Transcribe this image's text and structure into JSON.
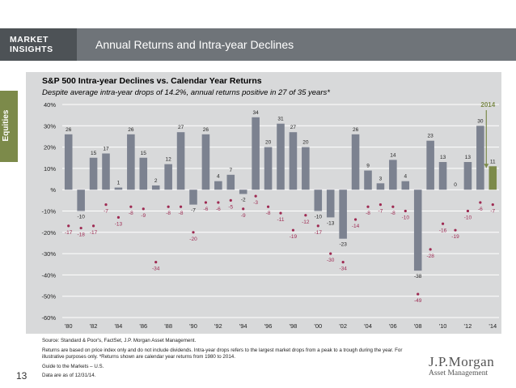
{
  "header": {
    "brand_line1": "MARKET",
    "brand_line2": "INSIGHTS",
    "title": "Annual Returns and Intra-year Declines"
  },
  "side_tab": "Equities",
  "page_number": "13",
  "logo": {
    "line1": "J.P.Morgan",
    "line2": "Asset Management"
  },
  "notes": {
    "source": "Source: Standard & Poor's, FactSet, J.P. Morgan Asset Management.",
    "returns": "Returns are based on price index only and do not include dividends. Intra-year drops refers to the largest market drops from a peak to a trough during the year. For illustrative purposes only. *Returns shown are calendar year returns from 1980 to 2014.",
    "guide": "Guide to the Markets – U.S.",
    "date": "Data are as of 12/31/14."
  },
  "colors": {
    "bar": "#7c8290",
    "highlight_bar": "#7c8a4a",
    "highlight_label": "#7c8a4a",
    "decline": "#9e2a52",
    "panel": "#d8d9da",
    "grid": "#ffffff"
  },
  "chart_data": {
    "type": "bar",
    "title": "S&P 500 Intra-year Declines vs. Calendar Year Returns",
    "subtitle": "Despite average intra-year drops of 14.2%, annual returns positive in 27 of 35 years*",
    "x": [
      1980,
      1981,
      1982,
      1983,
      1984,
      1985,
      1986,
      1987,
      1988,
      1989,
      1990,
      1991,
      1992,
      1993,
      1994,
      1995,
      1996,
      1997,
      1998,
      1999,
      2000,
      2001,
      2002,
      2003,
      2004,
      2005,
      2006,
      2007,
      2008,
      2009,
      2010,
      2011,
      2012,
      2013,
      2014
    ],
    "x_tick_labels": [
      "'80",
      "'82",
      "'84",
      "'86",
      "'88",
      "'90",
      "'92",
      "'94",
      "'96",
      "'98",
      "'00",
      "'02",
      "'04",
      "'06",
      "'08",
      "'10",
      "'12",
      "'14"
    ],
    "y_tick_labels": [
      "40%",
      "30%",
      "20%",
      "10%",
      "%",
      "-10%",
      "-20%",
      "-30%",
      "-40%",
      "-50%",
      "-60%"
    ],
    "ylim": [
      -60,
      40
    ],
    "series": [
      {
        "name": "Calendar year returns",
        "values": [
          26,
          -10,
          15,
          17,
          1,
          26,
          15,
          2,
          12,
          27,
          -7,
          26,
          4,
          7,
          -2,
          34,
          20,
          31,
          27,
          20,
          -10,
          -13,
          -23,
          26,
          9,
          3,
          14,
          4,
          -38,
          23,
          13,
          0,
          13,
          30,
          11
        ]
      },
      {
        "name": "Intra-year declines",
        "values": [
          -17,
          -18,
          -17,
          -7,
          -13,
          -8,
          -9,
          -34,
          -8,
          -8,
          -20,
          -6,
          -6,
          -5,
          -9,
          -3,
          -8,
          -11,
          -19,
          -12,
          -17,
          -30,
          -34,
          -14,
          -8,
          -7,
          -8,
          -10,
          -49,
          -28,
          -16,
          -19,
          -10,
          -6,
          -7
        ]
      }
    ],
    "highlight": {
      "label": "2014",
      "year": 2014
    },
    "grid": true
  }
}
